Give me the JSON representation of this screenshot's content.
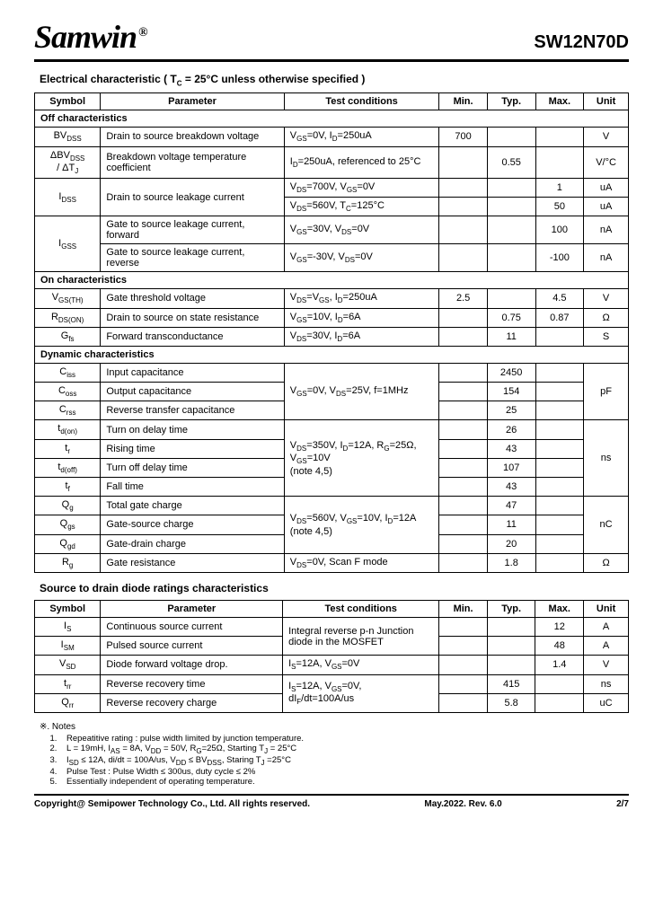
{
  "header": {
    "logo": "Samwin",
    "reg": "®",
    "part": "SW12N70D"
  },
  "sec1": {
    "title_prefix": "Electrical characteristic",
    "title_suffix": " ( T",
    "title_sub": "C",
    "title_tail": " = 25°C unless otherwise specified )",
    "cols": {
      "symbol": "Symbol",
      "param": "Parameter",
      "cond": "Test conditions",
      "min": "Min.",
      "typ": "Typ.",
      "max": "Max.",
      "unit": "Unit"
    },
    "groups": {
      "off": "Off characteristics",
      "on": "On characteristics",
      "dyn": "Dynamic characteristics"
    },
    "rows": {
      "bvdss": {
        "param": "Drain to source breakdown voltage",
        "min": "700",
        "typ": "",
        "max": "",
        "unit": "V"
      },
      "dbvdss": {
        "param": "Breakdown voltage temperature coefficient",
        "min": "",
        "typ": "0.55",
        "max": "",
        "unit": "V/°C"
      },
      "idss1": {
        "param": "Drain to source leakage current",
        "min": "",
        "typ": "",
        "max": "1",
        "unit": "uA"
      },
      "idss2": {
        "min": "",
        "typ": "",
        "max": "50",
        "unit": "uA"
      },
      "igss1": {
        "param": "Gate to source leakage current, forward",
        "min": "",
        "typ": "",
        "max": "100",
        "unit": "nA"
      },
      "igss2": {
        "param": "Gate to source leakage current, reverse",
        "min": "",
        "typ": "",
        "max": "-100",
        "unit": "nA"
      },
      "vgsth": {
        "param": "Gate threshold voltage",
        "min": "2.5",
        "typ": "",
        "max": "4.5",
        "unit": "V"
      },
      "rdson": {
        "param": "Drain to source on state resistance",
        "min": "",
        "typ": "0.75",
        "max": "0.87",
        "unit": "Ω"
      },
      "gfs": {
        "param": "Forward transconductance",
        "min": "",
        "typ": "11",
        "max": "",
        "unit": "S"
      },
      "ciss": {
        "param": "Input capacitance",
        "min": "",
        "typ": "2450",
        "max": ""
      },
      "coss": {
        "param": "Output capacitance",
        "min": "",
        "typ": "154",
        "max": "",
        "unit": "pF"
      },
      "crss": {
        "param": "Reverse transfer capacitance",
        "min": "",
        "typ": "25",
        "max": ""
      },
      "tdon": {
        "param": "Turn on delay time",
        "min": "",
        "typ": "26",
        "max": ""
      },
      "tr": {
        "param": "Rising time",
        "min": "",
        "typ": "43",
        "max": "",
        "unit": "ns"
      },
      "tdoff": {
        "param": "Turn off delay time",
        "min": "",
        "typ": "107",
        "max": ""
      },
      "tf": {
        "param": "Fall time",
        "min": "",
        "typ": "43",
        "max": ""
      },
      "qg": {
        "param": "Total gate charge",
        "min": "",
        "typ": "47",
        "max": ""
      },
      "qgs": {
        "param": "Gate-source charge",
        "min": "",
        "typ": "11",
        "max": "",
        "unit": "nC"
      },
      "qgd": {
        "param": "Gate-drain charge",
        "min": "",
        "typ": "20",
        "max": ""
      },
      "rg": {
        "param": "Gate resistance",
        "min": "",
        "typ": "1.8",
        "max": "",
        "unit": "Ω"
      }
    }
  },
  "sec2": {
    "title": "Source to drain diode ratings characteristics",
    "rows": {
      "is": {
        "param": "Continuous source current",
        "min": "",
        "typ": "",
        "max": "12",
        "unit": "A"
      },
      "ism": {
        "param": "Pulsed source current",
        "cond": "",
        "min": "",
        "typ": "",
        "max": "48",
        "unit": "A"
      },
      "vsd": {
        "param": "Diode forward voltage drop.",
        "min": "",
        "typ": "",
        "max": "1.4",
        "unit": "V"
      },
      "trr": {
        "param": "Reverse recovery time",
        "min": "",
        "typ": "415",
        "max": "",
        "unit": "ns"
      },
      "qrr": {
        "param": "Reverse recovery charge",
        "min": "",
        "typ": "5.8",
        "max": "",
        "unit": "uC"
      }
    },
    "cond_diode": "Integral reverse p-n Junction diode in the MOSFET"
  },
  "notes": {
    "title": "※. Notes",
    "n1": "Repeatitive rating : pulse width limited by junction temperature.",
    "n4": "Pulse Test : Pulse Width ≤ 300us, duty cycle ≤ 2%",
    "n5": "Essentially independent of operating temperature."
  },
  "footer": {
    "left": "Copyright@ Semipower Technology Co., Ltd. All rights reserved.",
    "mid": "May.2022. Rev. 6.0",
    "right": "2/7"
  }
}
